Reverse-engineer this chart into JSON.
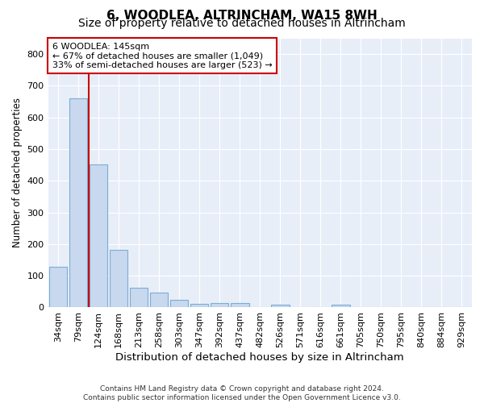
{
  "title": "6, WOODLEA, ALTRINCHAM, WA15 8WH",
  "subtitle": "Size of property relative to detached houses in Altrincham",
  "xlabel": "Distribution of detached houses by size in Altrincham",
  "ylabel": "Number of detached properties",
  "footer_line1": "Contains HM Land Registry data © Crown copyright and database right 2024.",
  "footer_line2": "Contains public sector information licensed under the Open Government Licence v3.0.",
  "bar_labels": [
    "34sqm",
    "79sqm",
    "124sqm",
    "168sqm",
    "213sqm",
    "258sqm",
    "303sqm",
    "347sqm",
    "392sqm",
    "437sqm",
    "482sqm",
    "526sqm",
    "571sqm",
    "616sqm",
    "661sqm",
    "705sqm",
    "750sqm",
    "795sqm",
    "840sqm",
    "884sqm",
    "929sqm"
  ],
  "bar_values": [
    128,
    660,
    452,
    183,
    63,
    48,
    25,
    12,
    13,
    13,
    0,
    8,
    0,
    0,
    8,
    0,
    0,
    0,
    0,
    0,
    0
  ],
  "bar_color": "#c8d8ee",
  "bar_edgecolor": "#7aaed4",
  "plot_bg_color": "#e8eef8",
  "grid_color": "#ffffff",
  "vline_x_index": 1,
  "vline_color": "#cc0000",
  "annotation_text": "6 WOODLEA: 145sqm\n← 67% of detached houses are smaller (1,049)\n33% of semi-detached houses are larger (523) →",
  "annotation_box_edgecolor": "#cc0000",
  "ylim": [
    0,
    850
  ],
  "yticks": [
    0,
    100,
    200,
    300,
    400,
    500,
    600,
    700,
    800
  ],
  "title_fontsize": 11,
  "subtitle_fontsize": 10,
  "ylabel_fontsize": 8.5,
  "xlabel_fontsize": 9.5,
  "tick_fontsize": 8,
  "annotation_fontsize": 8,
  "footer_fontsize": 6.5
}
